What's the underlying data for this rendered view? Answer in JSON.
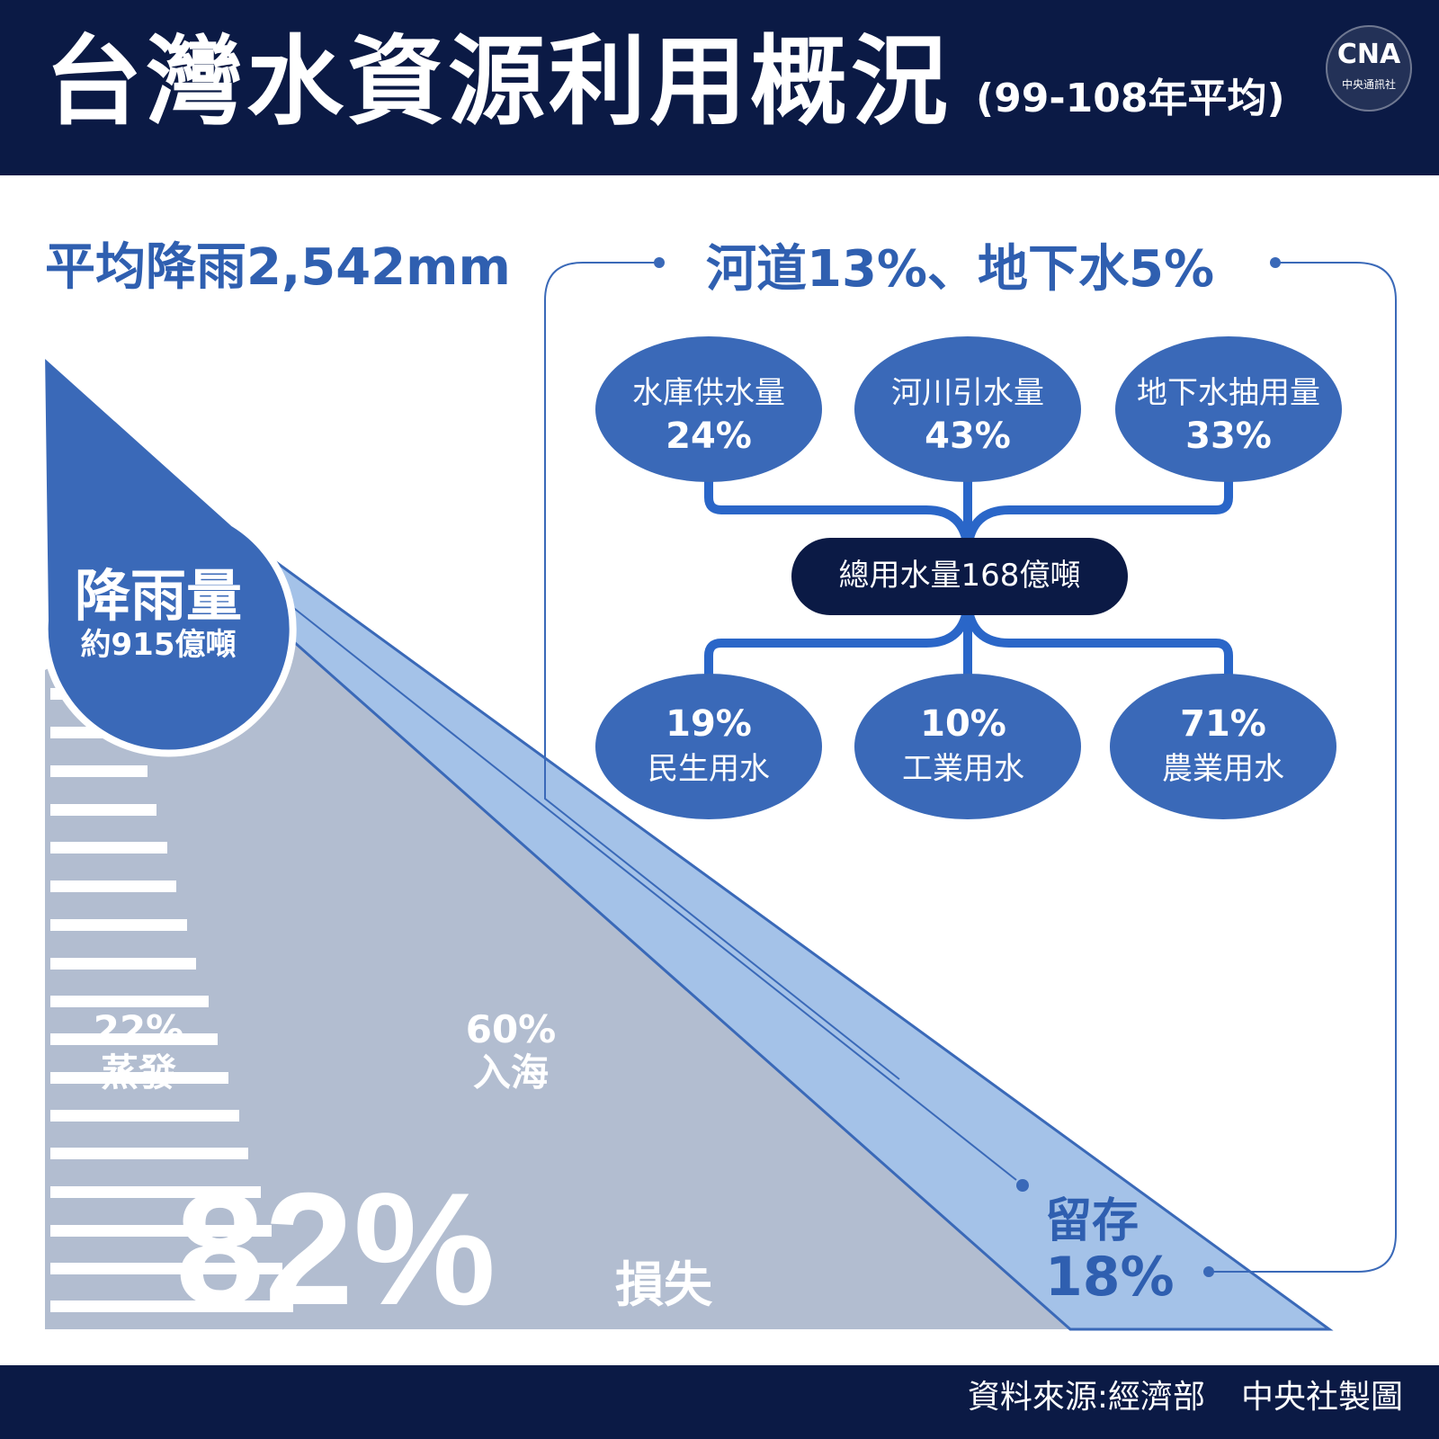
{
  "header": {
    "title": "台灣水資源利用概況",
    "subtitle": "(99-108年平均)",
    "logo": {
      "mark": "CNA",
      "text": "中央通訊社"
    }
  },
  "rainfall": {
    "title": "平均降雨2,542mm",
    "drop_label": "降雨量",
    "drop_amount": "約915億噸"
  },
  "losses": {
    "evaporation": {
      "pct": "22%",
      "label": "蒸發"
    },
    "to_sea": {
      "pct": "60%",
      "label": "入海"
    },
    "total_pct": "82%",
    "total_label": "損失"
  },
  "retention": {
    "label": "留存",
    "pct": "18%"
  },
  "usage": {
    "title": "河道13%、地下水5%",
    "sources": [
      {
        "label": "水庫供水量",
        "pct": "24%"
      },
      {
        "label": "河川引水量",
        "pct": "43%"
      },
      {
        "label": "地下水抽用量",
        "pct": "33%"
      }
    ],
    "total": "總用水量168億噸",
    "uses": [
      {
        "pct": "19%",
        "label": "民生用水"
      },
      {
        "pct": "10%",
        "label": "工業用水"
      },
      {
        "pct": "71%",
        "label": "農業用水"
      }
    ]
  },
  "footer": {
    "source": "資料來源:經濟部",
    "credit": "中央社製圖"
  },
  "colors": {
    "navy": "#0b1a45",
    "blue": "#3a69b8",
    "title_blue": "#2f5fb0",
    "light_blue": "#a4c2e8",
    "gray": "#b2bdd0"
  }
}
